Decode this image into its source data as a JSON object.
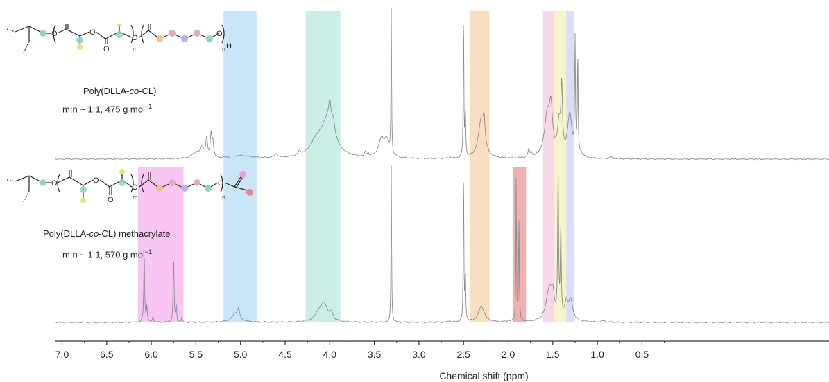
{
  "chart_data": {
    "type": "line",
    "xlabel": "Chemical shift (ppm)",
    "xlim": [
      7.0,
      0.0
    ],
    "x_reversed": true,
    "xticks": [
      7.0,
      6.5,
      6.0,
      5.5,
      5.0,
      4.5,
      4.0,
      3.5,
      3.0,
      2.5,
      2.0,
      1.5,
      1.0,
      0.5
    ],
    "xtick_labels": [
      "7.0",
      "6.5",
      "6.0",
      "5.5",
      "5.0",
      "4.5",
      "4.0",
      "3.5",
      "3.0",
      "2.5",
      "2.0",
      "1.5",
      "1.0",
      "0.5"
    ],
    "grid": false,
    "line_color": "#8a8a8a",
    "highlight_regions": [
      {
        "from": 5.19,
        "to": 4.82,
        "color": "#bfe0f7",
        "span": "both"
      },
      {
        "from": 4.27,
        "to": 3.88,
        "color": "#c3ebe4",
        "span": "both"
      },
      {
        "from": 2.43,
        "to": 2.21,
        "color": "#f8d9b7",
        "span": "both"
      },
      {
        "from": 1.61,
        "to": 1.48,
        "color": "#f8d0e4",
        "span": "both"
      },
      {
        "from": 1.48,
        "to": 1.35,
        "color": "#f3f3bf",
        "span": "both"
      },
      {
        "from": 1.35,
        "to": 1.26,
        "color": "#d9d6f5",
        "span": "both"
      },
      {
        "from": 6.15,
        "to": 5.64,
        "color": "#f8c0f3",
        "span": "bottom"
      },
      {
        "from": 1.95,
        "to": 1.8,
        "color": "#f0a9a9",
        "span": "bottom"
      }
    ],
    "series": [
      {
        "peaks": [
          {
            "ppm": 5.5,
            "h": 0.04,
            "w": 0.05
          },
          {
            "ppm": 5.43,
            "h": 0.07,
            "w": 0.02
          },
          {
            "ppm": 5.38,
            "h": 0.12,
            "w": 0.012
          },
          {
            "ppm": 5.33,
            "h": 0.15,
            "w": 0.01
          },
          {
            "ppm": 5.31,
            "h": 0.1,
            "w": 0.01
          },
          {
            "ppm": 5.0,
            "h": 0.02,
            "w": 0.15
          },
          {
            "ppm": 4.6,
            "h": 0.025,
            "w": 0.02
          },
          {
            "ppm": 4.34,
            "h": 0.025,
            "w": 0.02
          },
          {
            "ppm": 4.15,
            "h": 0.08,
            "w": 0.08
          },
          {
            "ppm": 4.02,
            "h": 0.25,
            "w": 0.09
          },
          {
            "ppm": 4.0,
            "h": 0.12,
            "w": 0.015
          },
          {
            "ppm": 3.96,
            "h": 0.08,
            "w": 0.02
          },
          {
            "ppm": 3.6,
            "h": 0.03,
            "w": 0.01
          },
          {
            "ppm": 3.57,
            "h": 0.02,
            "w": 0.01
          },
          {
            "ppm": 3.42,
            "h": 0.12,
            "w": 0.04
          },
          {
            "ppm": 3.36,
            "h": 0.1,
            "w": 0.03
          },
          {
            "ppm": 3.31,
            "h": 0.95,
            "w": 0.004
          },
          {
            "ppm": 2.65,
            "h": 0.01,
            "w": 0.01
          },
          {
            "ppm": 2.5,
            "h": 0.98,
            "w": 0.004
          },
          {
            "ppm": 2.48,
            "h": 0.3,
            "w": 0.005
          },
          {
            "ppm": 2.3,
            "h": 0.26,
            "w": 0.04
          },
          {
            "ppm": 2.27,
            "h": 0.14,
            "w": 0.012
          },
          {
            "ppm": 1.77,
            "h": 0.05,
            "w": 0.01
          },
          {
            "ppm": 1.74,
            "h": 0.03,
            "w": 0.01
          },
          {
            "ppm": 1.56,
            "h": 0.28,
            "w": 0.04
          },
          {
            "ppm": 1.52,
            "h": 0.25,
            "w": 0.02
          },
          {
            "ppm": 1.43,
            "h": 0.2,
            "w": 0.02
          },
          {
            "ppm": 1.4,
            "h": 0.42,
            "w": 0.01
          },
          {
            "ppm": 1.31,
            "h": 0.28,
            "w": 0.03
          },
          {
            "ppm": 1.25,
            "h": 0.75,
            "w": 0.005
          },
          {
            "ppm": 1.22,
            "h": 0.65,
            "w": 0.005
          },
          {
            "ppm": 1.18,
            "h": 0.02,
            "w": 0.02
          },
          {
            "ppm": 0.85,
            "h": 0.01,
            "w": 0.02
          }
        ]
      },
      {
        "peaks": [
          {
            "ppm": 6.08,
            "h": 0.42,
            "w": 0.006
          },
          {
            "ppm": 6.05,
            "h": 0.1,
            "w": 0.006
          },
          {
            "ppm": 5.98,
            "h": 0.04,
            "w": 0.006
          },
          {
            "ppm": 5.75,
            "h": 0.41,
            "w": 0.006
          },
          {
            "ppm": 5.72,
            "h": 0.1,
            "w": 0.006
          },
          {
            "ppm": 5.66,
            "h": 0.03,
            "w": 0.006
          },
          {
            "ppm": 5.05,
            "h": 0.06,
            "w": 0.05
          },
          {
            "ppm": 5.02,
            "h": 0.05,
            "w": 0.01
          },
          {
            "ppm": 4.12,
            "h": 0.05,
            "w": 0.05
          },
          {
            "ppm": 4.06,
            "h": 0.1,
            "w": 0.05
          },
          {
            "ppm": 3.98,
            "h": 0.04,
            "w": 0.02
          },
          {
            "ppm": 3.31,
            "h": 0.98,
            "w": 0.004
          },
          {
            "ppm": 2.66,
            "h": 0.01,
            "w": 0.01
          },
          {
            "ppm": 2.5,
            "h": 0.98,
            "w": 0.004
          },
          {
            "ppm": 2.48,
            "h": 0.3,
            "w": 0.005
          },
          {
            "ppm": 2.3,
            "h": 0.1,
            "w": 0.04
          },
          {
            "ppm": 2.0,
            "h": 0.01,
            "w": 0.01
          },
          {
            "ppm": 1.91,
            "h": 0.9,
            "w": 0.004
          },
          {
            "ppm": 1.88,
            "h": 0.62,
            "w": 0.005
          },
          {
            "ppm": 1.54,
            "h": 0.2,
            "w": 0.04
          },
          {
            "ppm": 1.5,
            "h": 0.12,
            "w": 0.02
          },
          {
            "ppm": 1.44,
            "h": 0.9,
            "w": 0.006
          },
          {
            "ppm": 1.41,
            "h": 0.55,
            "w": 0.006
          },
          {
            "ppm": 1.35,
            "h": 0.1,
            "w": 0.02
          },
          {
            "ppm": 1.3,
            "h": 0.13,
            "w": 0.03
          },
          {
            "ppm": 0.93,
            "h": 0.01,
            "w": 0.02
          }
        ]
      }
    ]
  },
  "labels": {
    "top_name_pre": "Poly(DLLA-",
    "top_name_co": "co",
    "top_name_post": "-CL)",
    "top_ratio": "m:n ~ 1:1, 475 g mol",
    "top_ratio_sup": "−1",
    "bottom_name_pre": "Poly(DLLA-",
    "bottom_name_co": "co",
    "bottom_name_post": "-CL) methacrylate",
    "bottom_ratio": "m:n ~ 1:1, 570 g mol",
    "bottom_ratio_sup": "−1"
  },
  "structures": {
    "top": {
      "subscript_m": "m",
      "subscript_n": "n",
      "end_group": "H",
      "oxygen": "O"
    },
    "bottom": {
      "subscript_m": "m",
      "subscript_n": "n",
      "oxygen": "O"
    }
  },
  "site_colors": {
    "teal": "#8fd3cc",
    "yellow": "#e5e57a",
    "orange": "#f5c08a",
    "pink": "#e9a7c8",
    "lavender": "#b8b3ee",
    "magenta": "#ee9ae8",
    "red": "#e48a8a"
  }
}
